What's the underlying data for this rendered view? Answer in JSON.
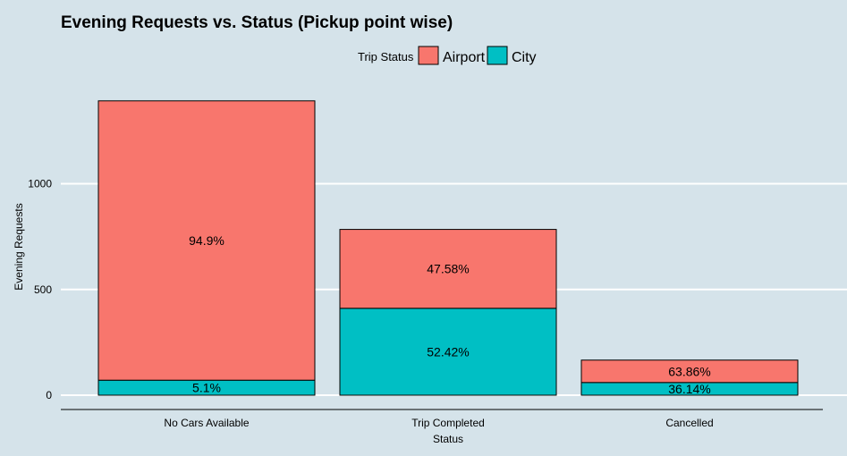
{
  "chart_data": {
    "type": "bar",
    "stacked": true,
    "title": "Evening Requests vs. Status (Pickup point wise)",
    "xlabel": "Status",
    "ylabel": "Evening Requests",
    "categories": [
      "No Cars Available",
      "Trip Completed",
      "Cancelled"
    ],
    "legend_title": "Trip Status",
    "legend_position": "top",
    "grid": true,
    "ylim": [
      0,
      1450
    ],
    "yticks": [
      0,
      500,
      1000
    ],
    "series": [
      {
        "name": "City",
        "color": "#00bfc4",
        "values": [
          71,
          411,
          60
        ],
        "labels": [
          "5.1%",
          "52.42%",
          "36.14%"
        ]
      },
      {
        "name": "Airport",
        "color": "#f8766d",
        "values": [
          1321,
          373,
          106
        ],
        "labels": [
          "94.9%",
          "47.58%",
          "63.86%"
        ]
      }
    ],
    "legend_order": [
      "Airport",
      "City"
    ]
  }
}
